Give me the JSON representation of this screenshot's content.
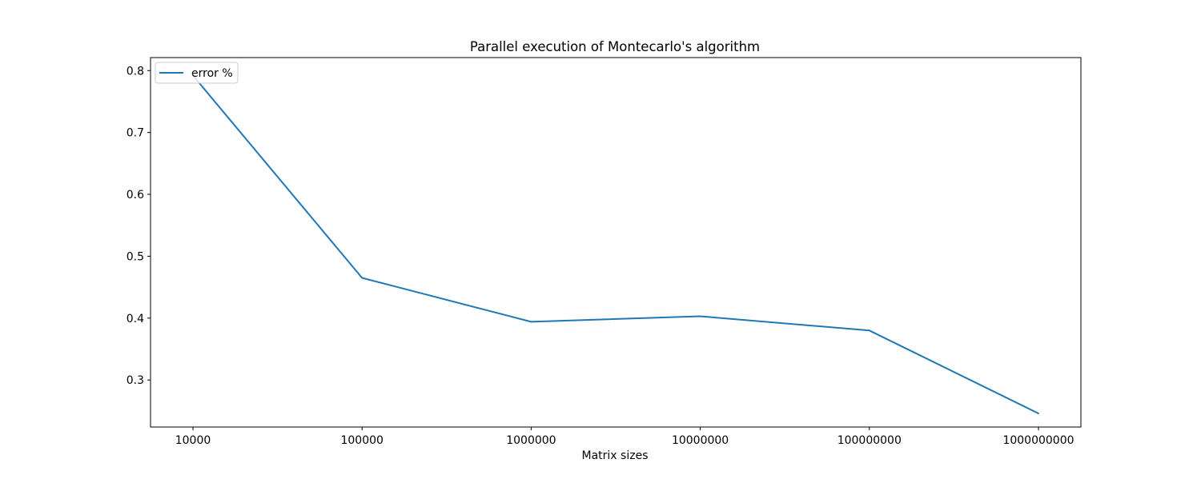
{
  "chart_data": {
    "type": "line",
    "title": "Parallel execution of Montecarlo's algorithm",
    "xlabel": "Matrix sizes",
    "ylabel": "",
    "categories": [
      "10000",
      "100000",
      "1000000",
      "10000000",
      "100000000",
      "1000000000"
    ],
    "series": [
      {
        "name": "error %",
        "color": "#1f77b4",
        "values": [
          0.792,
          0.465,
          0.394,
          0.403,
          0.38,
          0.246
        ]
      }
    ],
    "yticks": [
      0.3,
      0.4,
      0.5,
      0.6,
      0.7,
      0.8
    ],
    "ytick_labels": [
      "0.3",
      "0.4",
      "0.5",
      "0.6",
      "0.7",
      "0.8"
    ],
    "ylim": [
      0.224,
      0.821
    ],
    "grid": false,
    "legend_position": "upper left"
  }
}
